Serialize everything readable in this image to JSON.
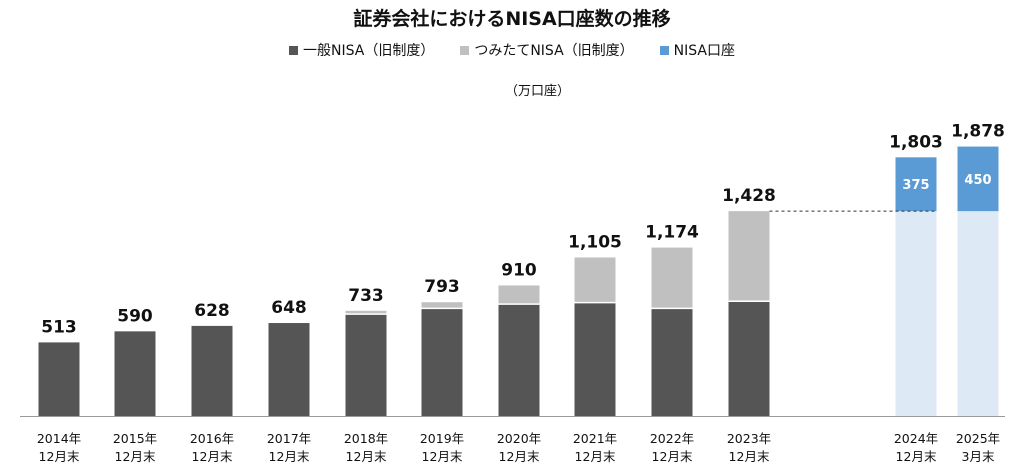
{
  "colors": {
    "general": "#555555",
    "tsumitate": "#c0c0c0",
    "new_nisa": "#5b9bd5",
    "new_base": "#dde9f4",
    "axis": "#9a9a9a"
  },
  "chart_data": {
    "type": "bar",
    "title": "証券会社におけるNISA口座数の推移",
    "unit": "（万口座）",
    "categories": [
      [
        "2014年",
        "12月末"
      ],
      [
        "2015年",
        "12月末"
      ],
      [
        "2016年",
        "12月末"
      ],
      [
        "2017年",
        "12月末"
      ],
      [
        "2018年",
        "12月末"
      ],
      [
        "2019年",
        "12月末"
      ],
      [
        "2020年",
        "12月末"
      ],
      [
        "2021年",
        "12月末"
      ],
      [
        "2022年",
        "12月末"
      ],
      [
        "2023年",
        "12月末"
      ],
      [
        "2024年",
        "12月末"
      ],
      [
        "2025年",
        "3月末"
      ]
    ],
    "series": [
      {
        "name": "一般NISA（旧制度）",
        "values": [
          513,
          590,
          628,
          648,
          710,
          750,
          780,
          790,
          750,
          800,
          null,
          null
        ]
      },
      {
        "name": "つみたてNISA（旧制度）",
        "values": [
          0,
          0,
          0,
          0,
          23,
          43,
          130,
          315,
          424,
          628,
          null,
          null
        ]
      },
      {
        "name": "NISA口座",
        "values": [
          null,
          null,
          null,
          null,
          null,
          null,
          null,
          null,
          null,
          null,
          375,
          450
        ]
      }
    ],
    "carryover_values": [
      null,
      null,
      null,
      null,
      null,
      null,
      null,
      null,
      null,
      null,
      1428,
      1428
    ],
    "totals": [
      "513",
      "590",
      "628",
      "648",
      "733",
      "793",
      "910",
      "1,105",
      "1,174",
      "1,428",
      "1,803",
      "1,878"
    ],
    "ylim": [
      0,
      2000
    ],
    "reference_line": 1428,
    "legend": "top-center"
  }
}
